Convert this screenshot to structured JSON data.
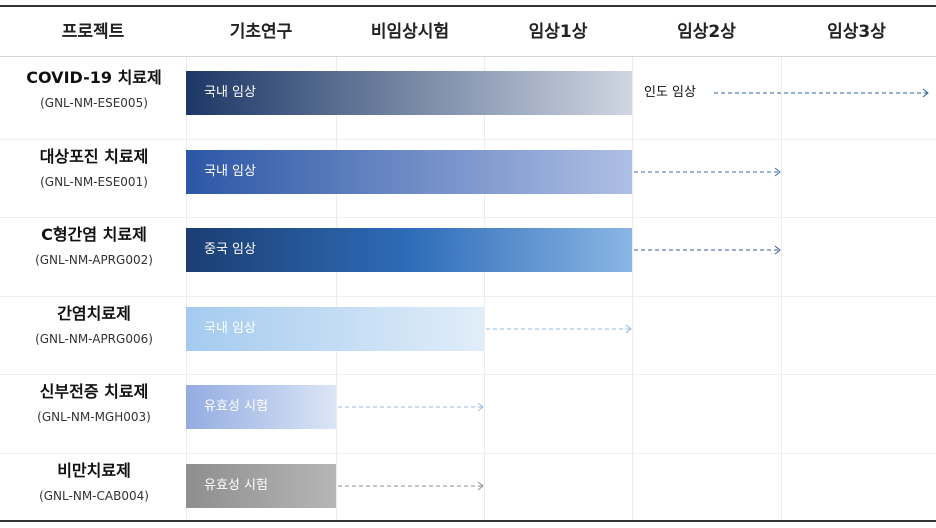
{
  "headers": [
    "프로젝트",
    "기초연구",
    "비임상시험",
    "임상1상",
    "임상2상",
    "임상3상"
  ],
  "projects": [
    {
      "name": "COVID-19 치료제",
      "code": "(GNL-NM-ESE005)",
      "bar_label": "국내 임상",
      "stage": "임상1상",
      "annotation": "인도 임상",
      "arrow_to": "임상3상",
      "colors": [
        "#1c3766",
        "#cfd6e2"
      ],
      "arrow_color": "#2f5d96"
    },
    {
      "name": "대상포진 치료제",
      "code": "(GNL-NM-ESE001)",
      "bar_label": "국내 임상",
      "stage": "임상1상",
      "arrow_to": "임상2상",
      "colors": [
        "#2c56a6",
        "#aebfe4"
      ],
      "arrow_color": "#3d6bb5"
    },
    {
      "name": "C형간염 치료제",
      "code": "(GNL-NM-APRG002)",
      "bar_label": "중국 임상",
      "stage": "임상1상",
      "arrow_to": "임상2상",
      "colors": [
        "#1b3d72",
        "#2e6cb8",
        "#8ab6e4"
      ],
      "arrow_color": "#2f5d96"
    },
    {
      "name": "간염치료제",
      "code": "(GNL-NM-APRG006)",
      "bar_label": "국내 임상",
      "stage": "비임상시험",
      "arrow_to": "임상1상",
      "colors": [
        "#a4cbef",
        "#e1edf9"
      ],
      "arrow_color": "#8fbce6"
    },
    {
      "name": "신부전증 치료제",
      "code": "(GNL-NM-MGH003)",
      "bar_label": "유효성 시험",
      "stage": "기초연구",
      "arrow_to": "비임상시험",
      "colors": [
        "#93ace1",
        "#dbe5f6"
      ],
      "arrow_color": "#9fb5e3"
    },
    {
      "name": "비만치료제",
      "code": "(GNL-NM-CAB004)",
      "bar_label": "유효성 시험",
      "stage": "기초연구",
      "arrow_to": "비임상시험",
      "colors": [
        "#8e8e8e",
        "#b6b6b6"
      ],
      "arrow_color": "#8e8e8e"
    }
  ]
}
